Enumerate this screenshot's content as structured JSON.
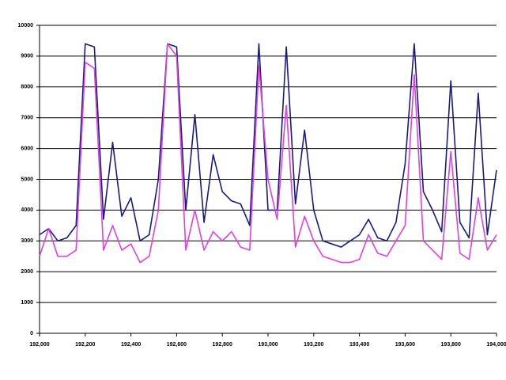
{
  "chart_data": {
    "type": "line",
    "x": [
      192000,
      192040,
      192080,
      192120,
      192160,
      192200,
      192240,
      192280,
      192320,
      192360,
      192400,
      192440,
      192480,
      192520,
      192560,
      192600,
      192640,
      192680,
      192720,
      192760,
      192800,
      192840,
      192880,
      192920,
      192960,
      193000,
      193040,
      193080,
      193120,
      193160,
      193200,
      193240,
      193280,
      193320,
      193360,
      193400,
      193440,
      193480,
      193520,
      193560,
      193600,
      193640,
      193680,
      193720,
      193760,
      193800,
      193840,
      193880,
      193920,
      193960,
      194000
    ],
    "series": [
      {
        "color": "#1a1a80",
        "values": [
          3200,
          3400,
          3000,
          3100,
          3500,
          9400,
          9300,
          3700,
          6200,
          3800,
          4400,
          3000,
          3200,
          5000,
          9400,
          9300,
          4000,
          7100,
          3600,
          5800,
          4600,
          4300,
          4200,
          3500,
          9400,
          4000,
          4000,
          9300,
          4200,
          6600,
          4000,
          3000,
          2900,
          2800,
          3000,
          3200,
          3700,
          3100,
          3000,
          3600,
          5500,
          9400,
          4600,
          4000,
          3300,
          8200,
          3600,
          3100,
          7800,
          3200,
          5300
        ]
      },
      {
        "color": "#e040e0",
        "values": [
          2500,
          3400,
          2500,
          2500,
          2700,
          8800,
          8600,
          2700,
          3500,
          2700,
          2900,
          2300,
          2500,
          4000,
          9400,
          9000,
          2700,
          4000,
          2700,
          3300,
          3000,
          3300,
          2800,
          2700,
          8700,
          5000,
          3700,
          7400,
          2800,
          3800,
          3000,
          2500,
          2400,
          2300,
          2300,
          2400,
          3200,
          2600,
          2500,
          3000,
          3500,
          8400,
          3000,
          2700,
          2400,
          5900,
          2600,
          2400,
          4400,
          2700,
          3200
        ]
      }
    ],
    "xlim": [
      192000,
      194000
    ],
    "xticks": [
      {
        "value": 192000,
        "label": "192,000"
      },
      {
        "value": 192200,
        "label": "192,200"
      },
      {
        "value": 192400,
        "label": "192,400"
      },
      {
        "value": 192600,
        "label": "192,600"
      },
      {
        "value": 192800,
        "label": "192,800"
      },
      {
        "value": 193000,
        "label": "193,000"
      },
      {
        "value": 193200,
        "label": "193,200"
      },
      {
        "value": 193400,
        "label": "193,400"
      },
      {
        "value": 193600,
        "label": "193,600"
      },
      {
        "value": 193800,
        "label": "193,800"
      },
      {
        "value": 194000,
        "label": "194,000"
      }
    ],
    "ylim": [
      0,
      10000
    ],
    "yticks": [
      0,
      1000,
      2000,
      3000,
      4000,
      5000,
      6000,
      7000,
      8000,
      9000,
      10000
    ],
    "grid": true
  }
}
